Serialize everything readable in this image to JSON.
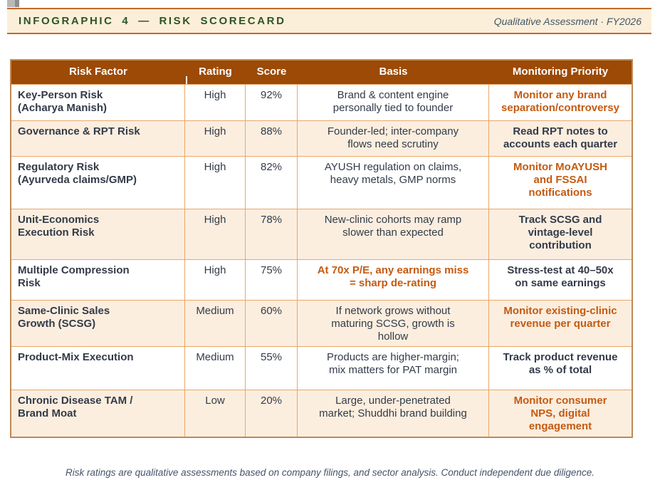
{
  "banner": {
    "title": "INFOGRAPHIC 4 — RISK SCORECARD",
    "subtitle": "Qualitative Assessment · FY2026"
  },
  "table": {
    "headers": [
      "Risk Factor",
      "Rating",
      "Score",
      "Basis",
      "Monitoring Priority"
    ],
    "rows": [
      {
        "factor": "Key-Person Risk\n(Acharya Manish)",
        "rating": "High",
        "score": "92%",
        "basis": "Brand & content engine\npersonally tied to founder",
        "basis_highlight": false,
        "priority": "Monitor any brand\nseparation/controversy",
        "priority_highlight": true
      },
      {
        "factor": "Governance & RPT Risk",
        "rating": "High",
        "score": "88%",
        "basis": "Founder-led; inter-company\nflows need scrutiny",
        "basis_highlight": false,
        "priority": "Read RPT notes to\naccounts each quarter",
        "priority_highlight": false
      },
      {
        "factor": "Regulatory Risk\n(Ayurveda claims/GMP)",
        "rating": "High",
        "score": "82%",
        "basis": "AYUSH regulation on claims,\nheavy metals, GMP norms",
        "basis_highlight": false,
        "priority": "Monitor MoAYUSH\nand FSSAI\nnotifications",
        "priority_highlight": true
      },
      {
        "factor": "Unit-Economics\nExecution Risk",
        "rating": "High",
        "score": "78%",
        "basis": "New-clinic cohorts may ramp\nslower than expected",
        "basis_highlight": false,
        "priority": "Track SCSG and\nvintage-level\ncontribution",
        "priority_highlight": false
      },
      {
        "factor": "Multiple Compression\nRisk",
        "rating": "High",
        "score": "75%",
        "basis": "At 70x P/E, any earnings miss\n= sharp de-rating",
        "basis_highlight": true,
        "priority": "Stress-test at 40–50x\non same earnings",
        "priority_highlight": false
      },
      {
        "factor": "Same-Clinic Sales\nGrowth (SCSG)",
        "rating": "Medium",
        "score": "60%",
        "basis": "If network grows without\nmaturing SCSG, growth is\nhollow",
        "basis_highlight": false,
        "priority": "Monitor existing-clinic\nrevenue per quarter",
        "priority_highlight": true
      },
      {
        "factor": "Product-Mix Execution",
        "rating": "Medium",
        "score": "55%",
        "basis": "Products are higher-margin;\nmix matters for PAT margin",
        "basis_highlight": false,
        "priority": "Track product revenue\nas % of total",
        "priority_highlight": false
      },
      {
        "factor": "Chronic Disease TAM /\nBrand Moat",
        "rating": "Low",
        "score": "20%",
        "basis": "Large, under-penetrated\nmarket; Shuddhi brand building",
        "basis_highlight": false,
        "priority": "Monitor consumer\nNPS, digital\nengagement",
        "priority_highlight": true
      }
    ]
  },
  "footer": {
    "disclaimer": "Risk ratings are qualitative assessments based on company filings, and sector analysis. Conduct independent due diligence."
  },
  "colors": {
    "header_brown": "#9C4A06",
    "accent_orange": "#C55A11",
    "border_orange": "#E9A768",
    "outer_border_tan": "#BE8A52",
    "banner_cream": "#FCEFD9",
    "row_peach": "#FBEEDF",
    "title_green": "#2D5425",
    "slate_blue": "#44546A",
    "body_text": "#333B49"
  }
}
